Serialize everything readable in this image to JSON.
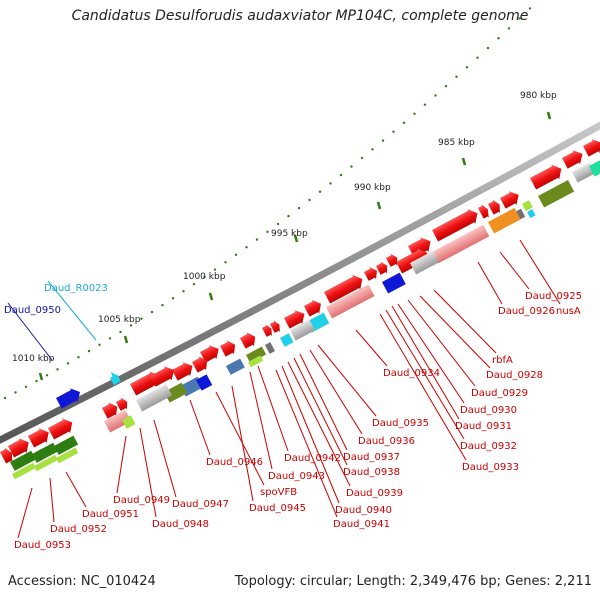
{
  "title": "Candidatus Desulforudis audaxviator MP104C, complete genome",
  "accession": "Accession: NC_010424",
  "topology": "Topology: circular; Length: 2,349,476 bp; Genes: 2,211",
  "scale_labels": [
    "980 kbp",
    "985 kbp",
    "990 kbp",
    "995 kbp",
    "1000 kbp",
    "1005 kbp",
    "1010 kbp"
  ],
  "gene_labels": {
    "Daud_0925": "Daud_0925",
    "Daud_0926": "Daud_0926",
    "nusA": "nusA",
    "rbfA": "rbfA",
    "Daud_0928": "Daud_0928",
    "Daud_0929": "Daud_0929",
    "Daud_0930": "Daud_0930",
    "Daud_0931": "Daud_0931",
    "Daud_0932": "Daud_0932",
    "Daud_0933": "Daud_0933",
    "Daud_0934": "Daud_0934",
    "Daud_0935": "Daud_0935",
    "Daud_0936": "Daud_0936",
    "Daud_0937": "Daud_0937",
    "Daud_0938": "Daud_0938",
    "Daud_0939": "Daud_0939",
    "Daud_0940": "Daud_0940",
    "Daud_0941": "Daud_0941",
    "Daud_0942": "Daud_0942",
    "Daud_0943": "Daud_0943",
    "Daud_0945": "Daud_0945",
    "Daud_0946": "Daud_0946",
    "spoVFB": "spoVFB",
    "Daud_0947": "Daud_0947",
    "Daud_0948": "Daud_0948",
    "Daud_0949": "Daud_0949",
    "Daud_0951": "Daud_0951",
    "Daud_0952": "Daud_0952",
    "Daud_0953": "Daud_0953",
    "Daud_R0023": "Daud_R0023",
    "Daud_0950": "Daud_0950"
  },
  "colors": {
    "red": "#ee1111",
    "pink": "#f08a8a",
    "grey": "#b5b5b5",
    "darkgrey": "#707070",
    "blue": "#1018d8",
    "cyan": "#20d0e8",
    "lightgreen": "#a8e040",
    "darkgreen": "#2e7d10",
    "olive": "#6a8a1e",
    "orange": "#f09020",
    "steel": "#4a78b0",
    "teal": "#20e0a0",
    "label_red": "#cc0000",
    "label_cyan": "#20a8d8",
    "label_blue": "#1018a8"
  }
}
